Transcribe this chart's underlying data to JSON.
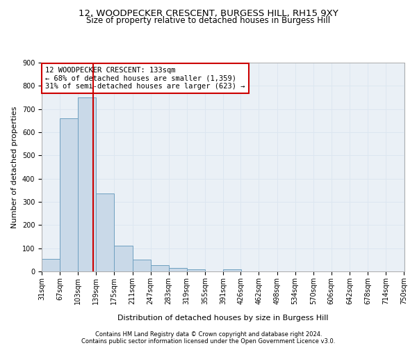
{
  "title_line1": "12, WOODPECKER CRESCENT, BURGESS HILL, RH15 9XY",
  "title_line2": "Size of property relative to detached houses in Burgess Hill",
  "xlabel": "Distribution of detached houses by size in Burgess Hill",
  "ylabel": "Number of detached properties",
  "footnote1": "Contains HM Land Registry data © Crown copyright and database right 2024.",
  "footnote2": "Contains public sector information licensed under the Open Government Licence v3.0.",
  "bar_left_edges": [
    31,
    67,
    103,
    139,
    175,
    211,
    247,
    283,
    319,
    355,
    391,
    426,
    462,
    498,
    534,
    570,
    606,
    642,
    678,
    714
  ],
  "bar_heights": [
    55,
    660,
    750,
    335,
    110,
    52,
    26,
    14,
    8,
    0,
    8,
    0,
    0,
    0,
    0,
    0,
    0,
    0,
    0,
    0
  ],
  "bin_width": 36,
  "bar_color": "#c9d9e8",
  "bar_edge_color": "#6ea0c0",
  "property_line_x": 133,
  "property_line_color": "#cc0000",
  "annotation_line1": "12 WOODPECKER CRESCENT: 133sqm",
  "annotation_line2": "← 68% of detached houses are smaller (1,359)",
  "annotation_line3": "31% of semi-detached houses are larger (623) →",
  "annotation_box_color": "#cc0000",
  "ylim": [
    0,
    900
  ],
  "yticks": [
    0,
    100,
    200,
    300,
    400,
    500,
    600,
    700,
    800,
    900
  ],
  "x_tick_labels": [
    "31sqm",
    "67sqm",
    "103sqm",
    "139sqm",
    "175sqm",
    "211sqm",
    "247sqm",
    "283sqm",
    "319sqm",
    "355sqm",
    "391sqm",
    "426sqm",
    "462sqm",
    "498sqm",
    "534sqm",
    "570sqm",
    "606sqm",
    "642sqm",
    "678sqm",
    "714sqm",
    "750sqm"
  ],
  "grid_color": "#dce6f0",
  "background_color": "#eaf0f6",
  "title_fontsize": 9.5,
  "subtitle_fontsize": 8.5,
  "axis_label_fontsize": 8,
  "tick_fontsize": 7,
  "annotation_fontsize": 7.5,
  "footnote_fontsize": 6
}
